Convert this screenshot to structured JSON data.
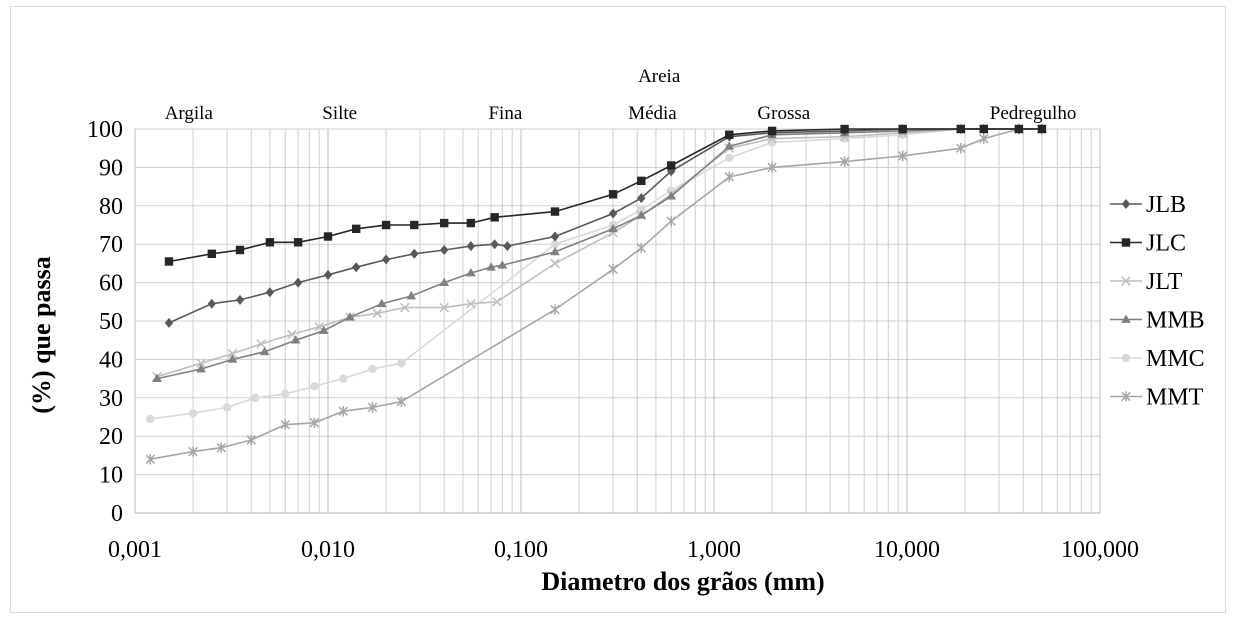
{
  "chart_data": {
    "type": "line",
    "title": "",
    "xlabel": "Diametro dos grãos (mm)",
    "ylabel": "(%) que passa",
    "x_scale": "log",
    "xlim": [
      0.001,
      100
    ],
    "ylim": [
      0,
      100
    ],
    "x_ticks": [
      {
        "value": 0.001,
        "label": "0,001"
      },
      {
        "value": 0.01,
        "label": "0,010"
      },
      {
        "value": 0.1,
        "label": "0,100"
      },
      {
        "value": 1,
        "label": "1,000"
      },
      {
        "value": 10,
        "label": "10,000"
      },
      {
        "value": 100,
        "label": "100,000"
      }
    ],
    "y_ticks": [
      0,
      10,
      20,
      30,
      40,
      50,
      60,
      70,
      80,
      90,
      100
    ],
    "grid": true,
    "legend_position": "right",
    "zone_labels": [
      {
        "text": "Argila",
        "x": 0.0019,
        "row": "lower"
      },
      {
        "text": "Silte",
        "x": 0.0115,
        "row": "lower"
      },
      {
        "text": "Fina",
        "x": 0.083,
        "row": "lower"
      },
      {
        "text": "Areia",
        "x": 0.52,
        "row": "upper"
      },
      {
        "text": "Média",
        "x": 0.48,
        "row": "lower"
      },
      {
        "text": "Grossa",
        "x": 2.3,
        "row": "lower"
      },
      {
        "text": "Pedregulho",
        "x": 45,
        "row": "lower"
      }
    ],
    "series": [
      {
        "name": "JLB",
        "marker": "diamond",
        "color": "#595959",
        "x": [
          0.0015,
          0.0025,
          0.0035,
          0.005,
          0.007,
          0.01,
          0.014,
          0.02,
          0.028,
          0.04,
          0.055,
          0.073,
          0.085,
          0.15,
          0.3,
          0.42,
          0.6,
          1.2,
          2,
          4.75,
          9.5,
          19,
          25,
          38,
          50
        ],
        "y": [
          49.5,
          54.5,
          55.5,
          57.5,
          60,
          62,
          64,
          66,
          67.5,
          68.5,
          69.5,
          70,
          69.5,
          72,
          78,
          82,
          89,
          98,
          99,
          99.5,
          100,
          100,
          100,
          100,
          100
        ]
      },
      {
        "name": "JLC",
        "marker": "square",
        "color": "#262626",
        "x": [
          0.0015,
          0.0025,
          0.0035,
          0.005,
          0.007,
          0.01,
          0.014,
          0.02,
          0.028,
          0.04,
          0.055,
          0.073,
          0.15,
          0.3,
          0.42,
          0.6,
          1.2,
          2,
          4.75,
          9.5,
          19,
          25,
          38,
          50
        ],
        "y": [
          65.5,
          67.5,
          68.5,
          70.5,
          70.5,
          72,
          74,
          75,
          75,
          75.5,
          75.5,
          77,
          78.5,
          83,
          86.5,
          90.5,
          98.5,
          99.5,
          100,
          100,
          100,
          100,
          100,
          100
        ]
      },
      {
        "name": "JLT",
        "marker": "x",
        "color": "#bfbfbf",
        "x": [
          0.0013,
          0.0022,
          0.0032,
          0.0045,
          0.0065,
          0.009,
          0.013,
          0.018,
          0.025,
          0.04,
          0.055,
          0.075,
          0.15,
          0.3,
          0.42,
          0.6,
          1.2,
          2,
          4.75,
          9.5,
          19,
          25,
          38,
          50
        ],
        "y": [
          35.5,
          39,
          41.5,
          44,
          46.5,
          48.5,
          51,
          52,
          53.5,
          53.5,
          54.5,
          55,
          65,
          73,
          77.5,
          83,
          95,
          97.5,
          98,
          99,
          100,
          100,
          100,
          100
        ]
      },
      {
        "name": "MMB",
        "marker": "triangle",
        "color": "#808080",
        "x": [
          0.0013,
          0.0022,
          0.0032,
          0.0047,
          0.0068,
          0.0095,
          0.013,
          0.019,
          0.027,
          0.04,
          0.055,
          0.07,
          0.08,
          0.15,
          0.3,
          0.42,
          0.6,
          1.2,
          2,
          4.75,
          9.5,
          19,
          25,
          38,
          50
        ],
        "y": [
          35,
          37.5,
          40,
          42,
          45,
          47.5,
          51,
          54.5,
          56.5,
          60,
          62.5,
          64,
          64.5,
          68,
          74,
          77.5,
          82.5,
          95.5,
          98.5,
          99,
          99.5,
          100,
          100,
          100,
          100
        ]
      },
      {
        "name": "MMC",
        "marker": "circle",
        "color": "#d9d9d9",
        "x": [
          0.0012,
          0.002,
          0.003,
          0.0042,
          0.006,
          0.0085,
          0.012,
          0.017,
          0.024,
          0.15,
          0.3,
          0.42,
          0.6,
          1.2,
          2,
          4.75,
          9.5,
          19,
          25,
          38,
          50
        ],
        "y": [
          24.5,
          26,
          27.5,
          30,
          31,
          33,
          35,
          37.5,
          39,
          70,
          75,
          79,
          84,
          92.5,
          96.5,
          97.5,
          98.5,
          100,
          100,
          100,
          100
        ]
      },
      {
        "name": "MMT",
        "marker": "asterisk",
        "color": "#a6a6a6",
        "x": [
          0.0012,
          0.002,
          0.0028,
          0.004,
          0.006,
          0.0085,
          0.012,
          0.017,
          0.024,
          0.15,
          0.3,
          0.42,
          0.6,
          1.2,
          2,
          4.75,
          9.5,
          19,
          25,
          38,
          50
        ],
        "y": [
          14,
          16,
          17,
          19,
          23,
          23.5,
          26.5,
          27.5,
          29,
          53,
          63.5,
          69,
          76,
          87.5,
          90,
          91.5,
          93,
          95,
          97.5,
          100,
          100
        ]
      }
    ]
  }
}
